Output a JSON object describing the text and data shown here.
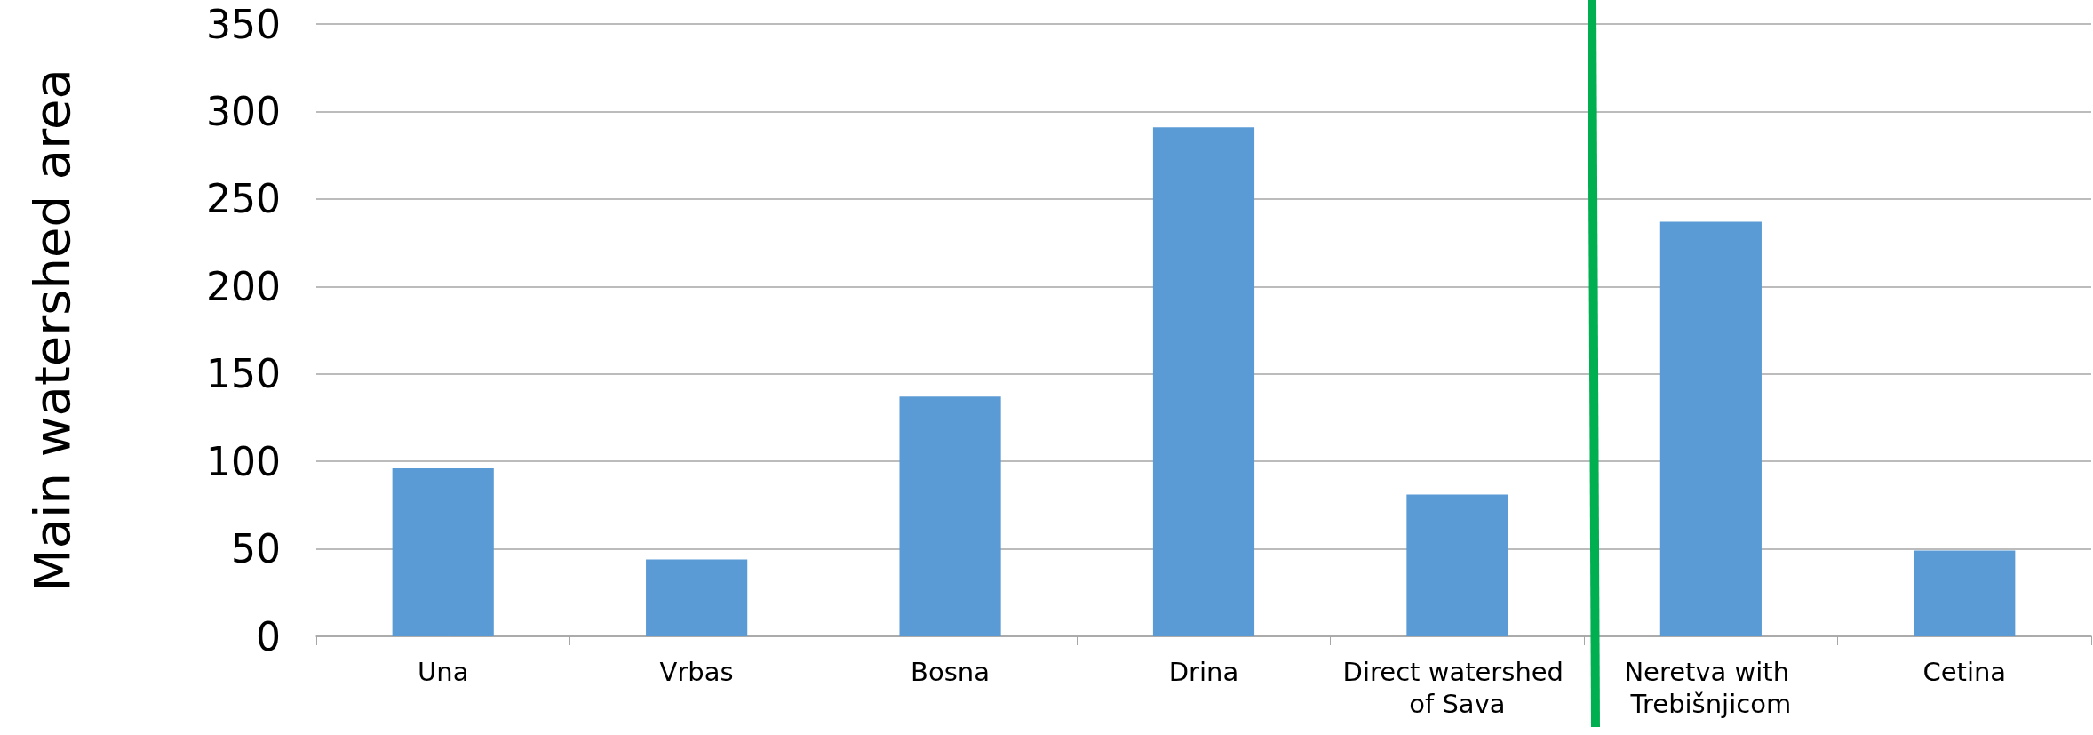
{
  "chart_data": {
    "type": "bar",
    "ylabel": "Main watershed area",
    "categories": [
      "Una",
      "Vrbas",
      "Bosna",
      "Drina",
      "Direct watershed of Sava",
      "Neretva with Trebišnjicom",
      "Cetina"
    ],
    "values": [
      96,
      44,
      137,
      291,
      81,
      237,
      49
    ],
    "color": "#5b9bd5",
    "ylim": [
      0,
      350
    ],
    "yticks": [
      0,
      50,
      100,
      150,
      200,
      250,
      300,
      350
    ],
    "grid": "y"
  }
}
